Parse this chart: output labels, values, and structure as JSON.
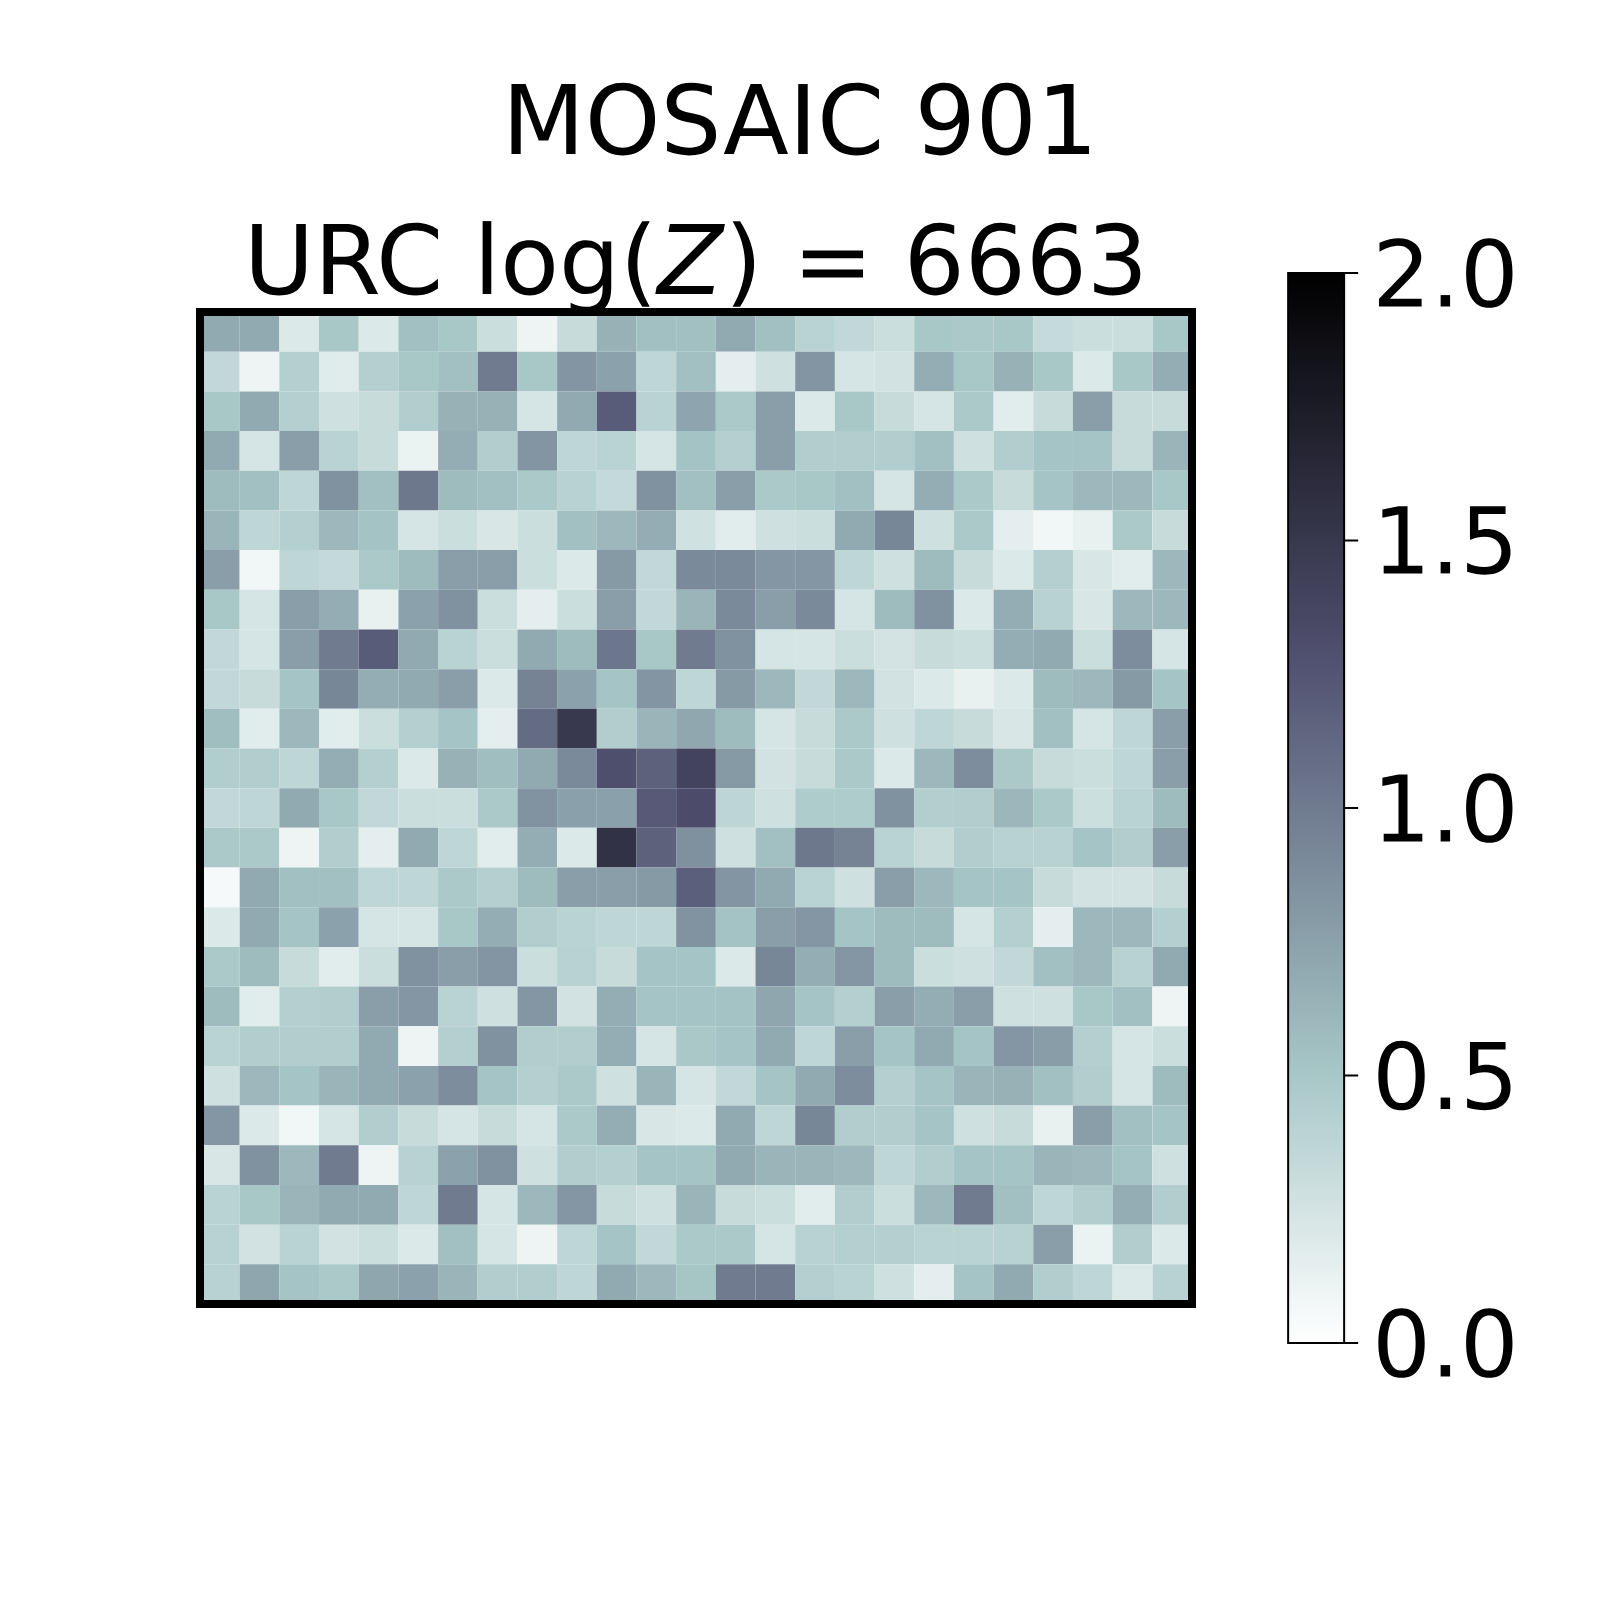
{
  "chart_data": {
    "type": "heatmap",
    "title": "MOSAIC 901",
    "subtitle": "URC log(*Z*) = 6663",
    "categories": [
      null,
      null,
      null,
      null,
      null,
      null,
      null,
      null,
      null,
      null,
      null,
      null,
      null,
      null,
      null,
      null,
      null,
      null,
      null,
      null,
      null,
      null,
      null,
      null,
      null
    ],
    "y_categories": [
      null,
      null,
      null,
      null,
      null,
      null,
      null,
      null,
      null,
      null,
      null,
      null,
      null,
      null,
      null,
      null,
      null,
      null,
      null,
      null,
      null,
      null,
      null,
      null,
      null
    ],
    "cells": [
      [
        0.7,
        0.7,
        0.2,
        0.5,
        0.2,
        0.55,
        0.5,
        0.3,
        0.1,
        0.32,
        0.65,
        0.55,
        0.55,
        0.7,
        0.55,
        0.4,
        0.35,
        0.3,
        0.5,
        0.48,
        0.5,
        0.33,
        0.3,
        0.3,
        0.5
      ],
      [
        0.35,
        0.1,
        0.43,
        0.18,
        0.43,
        0.5,
        0.55,
        1.0,
        0.5,
        0.83,
        0.75,
        0.37,
        0.55,
        0.15,
        0.28,
        0.83,
        0.24,
        0.26,
        0.67,
        0.5,
        0.65,
        0.5,
        0.2,
        0.5,
        0.67
      ],
      [
        0.5,
        0.7,
        0.43,
        0.28,
        0.32,
        0.45,
        0.65,
        0.65,
        0.24,
        0.7,
        1.2,
        0.4,
        0.73,
        0.48,
        0.77,
        0.2,
        0.5,
        0.32,
        0.24,
        0.48,
        0.17,
        0.32,
        0.77,
        0.32,
        0.32
      ],
      [
        0.7,
        0.24,
        0.77,
        0.4,
        0.32,
        0.12,
        0.67,
        0.45,
        0.83,
        0.37,
        0.4,
        0.24,
        0.53,
        0.43,
        0.77,
        0.45,
        0.45,
        0.45,
        0.55,
        0.28,
        0.45,
        0.52,
        0.52,
        0.32,
        0.62
      ],
      [
        0.58,
        0.55,
        0.37,
        0.85,
        0.55,
        1.02,
        0.58,
        0.55,
        0.48,
        0.41,
        0.34,
        0.85,
        0.55,
        0.77,
        0.48,
        0.5,
        0.55,
        0.24,
        0.67,
        0.48,
        0.32,
        0.52,
        0.6,
        0.6,
        0.5
      ],
      [
        0.62,
        0.37,
        0.43,
        0.6,
        0.53,
        0.24,
        0.3,
        0.22,
        0.3,
        0.55,
        0.6,
        0.67,
        0.27,
        0.17,
        0.28,
        0.3,
        0.7,
        0.92,
        0.28,
        0.48,
        0.15,
        0.08,
        0.13,
        0.48,
        0.32
      ],
      [
        0.77,
        0.08,
        0.37,
        0.34,
        0.48,
        0.58,
        0.77,
        0.77,
        0.3,
        0.2,
        0.8,
        0.35,
        0.9,
        0.9,
        0.82,
        0.82,
        0.37,
        0.28,
        0.58,
        0.32,
        0.2,
        0.43,
        0.22,
        0.17,
        0.6
      ],
      [
        0.5,
        0.24,
        0.77,
        0.67,
        0.13,
        0.75,
        0.85,
        0.3,
        0.15,
        0.3,
        0.77,
        0.35,
        0.62,
        0.9,
        0.77,
        0.9,
        0.24,
        0.58,
        0.85,
        0.2,
        0.67,
        0.41,
        0.22,
        0.6,
        0.6
      ],
      [
        0.35,
        0.24,
        0.77,
        1.0,
        1.2,
        0.7,
        0.4,
        0.3,
        0.7,
        0.58,
        1.03,
        0.5,
        1.0,
        0.85,
        0.24,
        0.24,
        0.3,
        0.25,
        0.32,
        0.3,
        0.67,
        0.7,
        0.3,
        0.88,
        0.24
      ],
      [
        0.35,
        0.32,
        0.52,
        0.92,
        0.67,
        0.7,
        0.77,
        0.2,
        0.95,
        0.75,
        0.52,
        0.83,
        0.37,
        0.8,
        0.6,
        0.35,
        0.6,
        0.26,
        0.2,
        0.13,
        0.2,
        0.58,
        0.6,
        0.8,
        0.52
      ],
      [
        0.57,
        0.17,
        0.6,
        0.17,
        0.3,
        0.43,
        0.52,
        0.15,
        1.1,
        1.5,
        0.45,
        0.62,
        0.71,
        0.58,
        0.24,
        0.32,
        0.48,
        0.28,
        0.37,
        0.32,
        0.22,
        0.55,
        0.24,
        0.37,
        0.77
      ],
      [
        0.45,
        0.45,
        0.37,
        0.67,
        0.43,
        0.2,
        0.65,
        0.57,
        0.7,
        0.9,
        1.3,
        1.17,
        1.4,
        0.8,
        0.26,
        0.32,
        0.48,
        0.2,
        0.6,
        0.88,
        0.48,
        0.32,
        0.3,
        0.37,
        0.77
      ],
      [
        0.35,
        0.37,
        0.7,
        0.5,
        0.35,
        0.3,
        0.3,
        0.48,
        0.84,
        0.76,
        0.76,
        1.22,
        1.32,
        0.38,
        0.28,
        0.46,
        0.46,
        0.85,
        0.44,
        0.45,
        0.61,
        0.48,
        0.29,
        0.4,
        0.58
      ],
      [
        0.48,
        0.48,
        0.1,
        0.45,
        0.15,
        0.7,
        0.37,
        0.17,
        0.67,
        0.2,
        1.55,
        1.17,
        0.86,
        0.28,
        0.55,
        1.02,
        0.95,
        0.4,
        0.32,
        0.45,
        0.41,
        0.41,
        0.52,
        0.45,
        0.77
      ],
      [
        0.05,
        0.7,
        0.55,
        0.55,
        0.37,
        0.37,
        0.48,
        0.43,
        0.58,
        0.77,
        0.77,
        0.8,
        1.18,
        0.83,
        0.7,
        0.4,
        0.28,
        0.77,
        0.6,
        0.52,
        0.52,
        0.32,
        0.26,
        0.26,
        0.32
      ],
      [
        0.2,
        0.7,
        0.52,
        0.75,
        0.24,
        0.24,
        0.5,
        0.67,
        0.45,
        0.4,
        0.37,
        0.37,
        0.84,
        0.53,
        0.77,
        0.82,
        0.52,
        0.58,
        0.58,
        0.24,
        0.43,
        0.15,
        0.6,
        0.6,
        0.43
      ],
      [
        0.48,
        0.58,
        0.32,
        0.17,
        0.3,
        0.85,
        0.77,
        0.83,
        0.3,
        0.41,
        0.32,
        0.52,
        0.52,
        0.2,
        0.92,
        0.67,
        0.82,
        0.58,
        0.3,
        0.28,
        0.35,
        0.55,
        0.6,
        0.41,
        0.7
      ],
      [
        0.58,
        0.17,
        0.43,
        0.45,
        0.77,
        0.82,
        0.4,
        0.28,
        0.82,
        0.26,
        0.67,
        0.52,
        0.52,
        0.53,
        0.72,
        0.52,
        0.43,
        0.77,
        0.67,
        0.77,
        0.28,
        0.28,
        0.5,
        0.55,
        0.1
      ],
      [
        0.4,
        0.45,
        0.45,
        0.45,
        0.7,
        0.1,
        0.43,
        0.85,
        0.45,
        0.45,
        0.67,
        0.24,
        0.49,
        0.52,
        0.7,
        0.37,
        0.77,
        0.52,
        0.7,
        0.52,
        0.82,
        0.78,
        0.43,
        0.24,
        0.3
      ],
      [
        0.28,
        0.6,
        0.52,
        0.62,
        0.7,
        0.75,
        0.88,
        0.52,
        0.43,
        0.48,
        0.28,
        0.62,
        0.24,
        0.35,
        0.52,
        0.7,
        0.88,
        0.43,
        0.52,
        0.62,
        0.65,
        0.55,
        0.45,
        0.24,
        0.58
      ],
      [
        0.82,
        0.2,
        0.08,
        0.24,
        0.45,
        0.32,
        0.24,
        0.32,
        0.24,
        0.48,
        0.67,
        0.22,
        0.2,
        0.7,
        0.37,
        0.92,
        0.45,
        0.45,
        0.52,
        0.28,
        0.32,
        0.13,
        0.77,
        0.55,
        0.52
      ],
      [
        0.22,
        0.85,
        0.6,
        1.0,
        0.1,
        0.41,
        0.75,
        0.85,
        0.28,
        0.45,
        0.43,
        0.52,
        0.52,
        0.7,
        0.62,
        0.62,
        0.6,
        0.37,
        0.45,
        0.52,
        0.52,
        0.62,
        0.6,
        0.52,
        0.28
      ],
      [
        0.4,
        0.5,
        0.62,
        0.7,
        0.7,
        0.37,
        1.0,
        0.24,
        0.6,
        0.82,
        0.32,
        0.28,
        0.62,
        0.32,
        0.3,
        0.17,
        0.45,
        0.3,
        0.6,
        1.0,
        0.55,
        0.37,
        0.45,
        0.67,
        0.45
      ],
      [
        0.41,
        0.26,
        0.4,
        0.26,
        0.3,
        0.2,
        0.55,
        0.24,
        0.1,
        0.37,
        0.52,
        0.35,
        0.48,
        0.48,
        0.24,
        0.41,
        0.43,
        0.43,
        0.4,
        0.4,
        0.41,
        0.77,
        0.12,
        0.45,
        0.2
      ],
      [
        0.41,
        0.72,
        0.52,
        0.48,
        0.72,
        0.75,
        0.62,
        0.45,
        0.45,
        0.37,
        0.7,
        0.6,
        0.51,
        1.0,
        1.0,
        0.43,
        0.4,
        0.28,
        0.15,
        0.52,
        0.7,
        0.45,
        0.37,
        0.2,
        0.41
      ]
    ],
    "clim": [
      0,
      2
    ],
    "cticks": [
      {
        "value": 0,
        "label": "0.0"
      },
      {
        "value": 0.5,
        "label": "0.5"
      },
      {
        "value": 1,
        "label": "1.0"
      },
      {
        "value": 1.5,
        "label": "1.5"
      },
      {
        "value": 2,
        "label": "2.0"
      }
    ]
  }
}
